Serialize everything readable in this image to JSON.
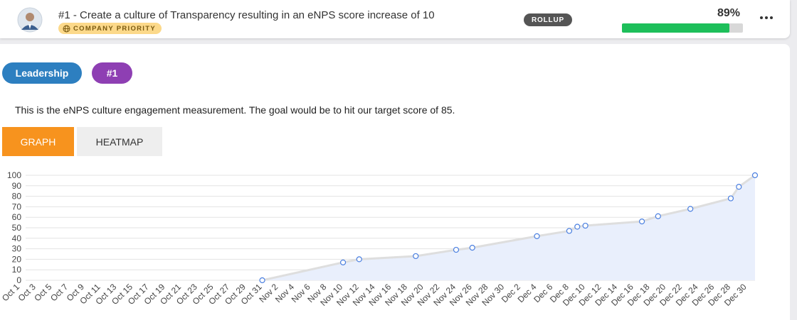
{
  "header": {
    "title": "#1 - Create a culture of Transparency resulting in an eNPS score increase of 10",
    "badge": "COMPANY PRIORITY",
    "rollup": "ROLLUP",
    "progress": {
      "value": 89,
      "label": "89%"
    }
  },
  "tags": [
    "Leadership",
    "#1"
  ],
  "description": "This is the eNPS culture engagement measurement. The goal would be to hit our target score of 85.",
  "tabs": [
    "GRAPH",
    "HEATMAP"
  ],
  "chart_data": {
    "type": "line",
    "x": [
      "Oct 31",
      "Nov 10",
      "Nov 12",
      "Nov 19",
      "Nov 24",
      "Nov 26",
      "Dec 4",
      "Dec 8",
      "Dec 9",
      "Dec 10",
      "Dec 17",
      "Dec 19",
      "Dec 23",
      "Dec 28",
      "Dec 29",
      "Dec 31"
    ],
    "values": [
      0,
      17,
      20,
      23,
      29,
      31,
      42,
      47,
      51,
      52,
      56,
      61,
      68,
      78,
      89,
      100
    ],
    "color": "#4a7fe0",
    "xlim": [
      "Oct 1",
      "Dec 31"
    ],
    "xticks": [
      "Oct 1",
      "Oct 3",
      "Oct 5",
      "Oct 7",
      "Oct 9",
      "Oct 11",
      "Oct 13",
      "Oct 15",
      "Oct 17",
      "Oct 19",
      "Oct 21",
      "Oct 23",
      "Oct 25",
      "Oct 27",
      "Oct 29",
      "Oct 31",
      "Nov 2",
      "Nov 4",
      "Nov 6",
      "Nov 8",
      "Nov 10",
      "Nov 12",
      "Nov 14",
      "Nov 16",
      "Nov 18",
      "Nov 20",
      "Nov 22",
      "Nov 24",
      "Nov 26",
      "Nov 28",
      "Nov 30",
      "Dec 2",
      "Dec 4",
      "Dec 6",
      "Dec 8",
      "Dec 10",
      "Dec 12",
      "Dec 14",
      "Dec 16",
      "Dec 18",
      "Dec 20",
      "Dec 22",
      "Dec 24",
      "Dec 26",
      "Dec 28",
      "Dec 30"
    ],
    "ylim": [
      0,
      100
    ],
    "yticks": [
      0,
      10,
      20,
      30,
      40,
      50,
      60,
      70,
      80,
      90,
      100
    ],
    "grid": true
  }
}
